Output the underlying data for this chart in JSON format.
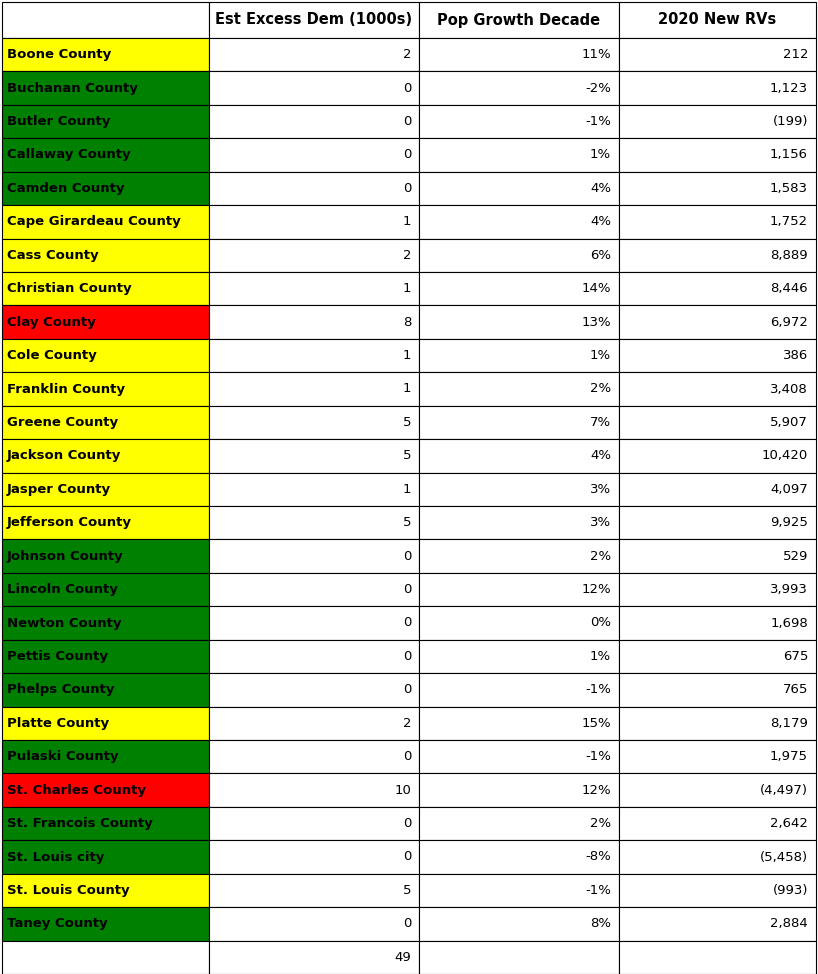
{
  "counties": [
    "Boone County",
    "Buchanan County",
    "Butler County",
    "Callaway County",
    "Camden County",
    "Cape Girardeau County",
    "Cass County",
    "Christian County",
    "Clay County",
    "Cole County",
    "Franklin County",
    "Greene County",
    "Jackson County",
    "Jasper County",
    "Jefferson County",
    "Johnson County",
    "Lincoln County",
    "Newton County",
    "Pettis County",
    "Phelps County",
    "Platte County",
    "Pulaski County",
    "St. Charles County",
    "St. Francois County",
    "St. Louis city",
    "St. Louis County",
    "Taney County"
  ],
  "row_colors": [
    "#FFFF00",
    "#008000",
    "#008000",
    "#008000",
    "#008000",
    "#FFFF00",
    "#FFFF00",
    "#FFFF00",
    "#FF0000",
    "#FFFF00",
    "#FFFF00",
    "#FFFF00",
    "#FFFF00",
    "#FFFF00",
    "#FFFF00",
    "#008000",
    "#008000",
    "#008000",
    "#008000",
    "#008000",
    "#FFFF00",
    "#008000",
    "#FF0000",
    "#008000",
    "#008000",
    "#FFFF00",
    "#008000"
  ],
  "excess_dem": [
    2,
    0,
    0,
    0,
    0,
    1,
    2,
    1,
    8,
    1,
    1,
    5,
    5,
    1,
    5,
    0,
    0,
    0,
    0,
    0,
    2,
    0,
    10,
    0,
    0,
    5,
    0
  ],
  "pop_growth": [
    "11%",
    "-2%",
    "-1%",
    "1%",
    "4%",
    "4%",
    "6%",
    "14%",
    "13%",
    "1%",
    "2%",
    "7%",
    "4%",
    "3%",
    "3%",
    "2%",
    "12%",
    "0%",
    "1%",
    "-1%",
    "15%",
    "-1%",
    "12%",
    "2%",
    "-8%",
    "-1%",
    "8%"
  ],
  "new_rvs": [
    "212",
    "1,123",
    "(199)",
    "1,156",
    "1,583",
    "1,752",
    "8,889",
    "8,446",
    "6,972",
    "386",
    "3,408",
    "5,907",
    "10,420",
    "4,097",
    "9,925",
    "529",
    "3,993",
    "1,698",
    "675",
    "765",
    "8,179",
    "1,975",
    "(4,497)",
    "2,642",
    "(5,458)",
    "(993)",
    "2,884"
  ],
  "total_excess": "49",
  "col_headers": [
    "Est Excess Dem (1000s)",
    "Pop Growth Decade",
    "2020 New RVs"
  ],
  "font_size": 9.5,
  "header_font_size": 10.5,
  "lw": 0.8
}
